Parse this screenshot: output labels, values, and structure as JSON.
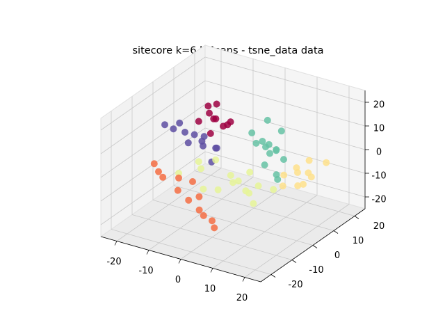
{
  "chart_data": {
    "type": "scatter3d",
    "title": "sitecore k=6 kMeans - tsne_data data",
    "xlim": [
      -25,
      25
    ],
    "ylim": [
      -25,
      25
    ],
    "zlim": [
      -25,
      25
    ],
    "xticks": [
      -20,
      -10,
      0,
      10,
      20
    ],
    "yticks": [
      -20,
      -10,
      0,
      10,
      20
    ],
    "zticks": [
      -20,
      -10,
      0,
      10,
      20
    ],
    "grid": true,
    "series": [
      {
        "color": "#5e4fa2",
        "x": [
          -20,
          -18,
          -15,
          -12,
          -10,
          -8,
          -14,
          -6,
          -16,
          -11,
          -9,
          -7
        ],
        "y": [
          -2,
          2,
          0,
          -3,
          1,
          4,
          3,
          -1,
          -4,
          2,
          0,
          3
        ],
        "z": [
          10,
          9,
          7.5,
          6,
          3,
          1,
          5,
          -1,
          11,
          4,
          8,
          2
        ]
      },
      {
        "color": "#9e0142",
        "x": [
          -12,
          -10,
          -8,
          -6,
          -4,
          -9,
          -7,
          -5,
          -11,
          -3
        ],
        "y": [
          2,
          4,
          3,
          1,
          5,
          6,
          0,
          3,
          5,
          2
        ],
        "z": [
          12,
          15,
          14,
          16,
          13,
          18,
          10,
          12,
          17,
          14
        ]
      },
      {
        "color": "#66c2a5",
        "x": [
          2,
          4,
          5,
          7,
          8,
          10,
          3,
          6,
          9,
          11,
          5,
          8,
          12,
          4
        ],
        "y": [
          6,
          8,
          8,
          10,
          5,
          9,
          12,
          6,
          7,
          4,
          10,
          11,
          3,
          5
        ],
        "z": [
          10,
          6,
          4,
          2,
          8,
          0,
          12,
          -2,
          5,
          -3,
          0,
          10,
          -4,
          7
        ]
      },
      {
        "color": "#fee08b",
        "x": [
          12,
          14,
          15,
          17,
          19,
          16,
          13,
          18,
          20,
          22
        ],
        "y": [
          6,
          9,
          8,
          5,
          7,
          12,
          4,
          10,
          3,
          11
        ],
        "z": [
          -4,
          -2,
          -3,
          -6,
          -1,
          0,
          -7,
          -5,
          -3,
          2
        ]
      },
      {
        "color": "#e6f598",
        "x": [
          -15,
          -10,
          -6,
          -2,
          0,
          3,
          6,
          9,
          12,
          -8,
          -4,
          2,
          7,
          -12,
          4
        ],
        "y": [
          -3,
          0,
          -5,
          2,
          0,
          -2,
          3,
          -4,
          1,
          4,
          -1,
          5,
          -3,
          2,
          0
        ],
        "z": [
          -8,
          -6,
          -10,
          -7,
          -8,
          -5,
          -9,
          -11,
          -7,
          -4,
          -12,
          -6,
          -8,
          -5,
          -10
        ]
      },
      {
        "color": "#f46d43",
        "x": [
          -22,
          -20,
          -18,
          -15,
          -12,
          -8,
          -4,
          0,
          2,
          -6,
          -10,
          -2
        ],
        "y": [
          -4,
          -5,
          -6,
          -3,
          -8,
          -9,
          -10,
          -10,
          -12,
          -7,
          -4,
          -11
        ],
        "z": [
          -6,
          -8,
          -9,
          -10,
          -11,
          -13,
          -15,
          -18,
          -19,
          -12,
          -9,
          -16
        ]
      }
    ]
  }
}
